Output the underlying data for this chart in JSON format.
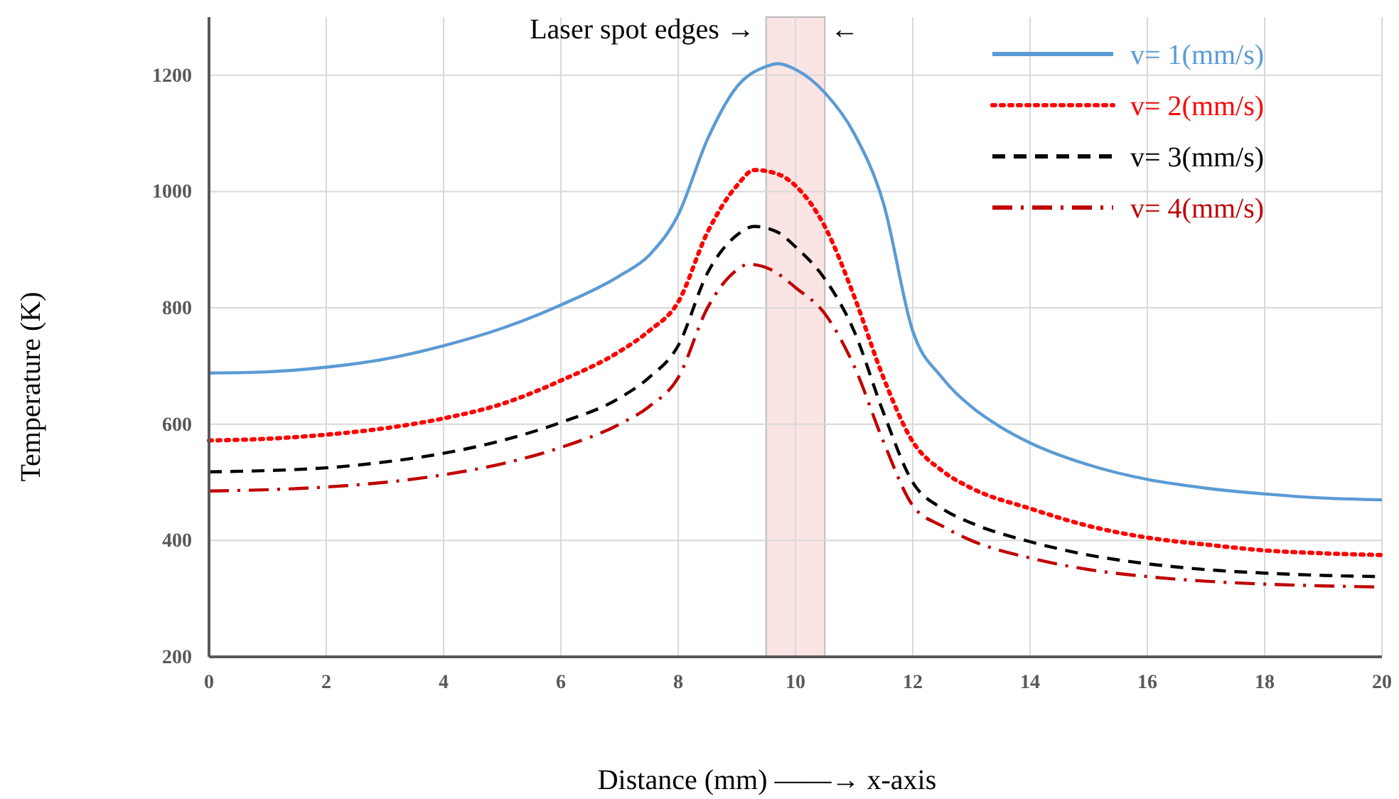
{
  "chart_data": {
    "type": "line",
    "xlabel": "Distance (mm) ——→ x-axis",
    "ylabel": "Temperature (K)",
    "xlim": [
      0,
      20
    ],
    "xticks": [
      0,
      2,
      4,
      6,
      8,
      10,
      12,
      14,
      16,
      18,
      20
    ],
    "ylim": [
      200,
      1300
    ],
    "yticks": [
      200,
      400,
      600,
      800,
      1000,
      1200
    ],
    "grid": true,
    "legend": "top right",
    "marker": "none",
    "bands": [
      {
        "axis": "x",
        "from": 9.5,
        "to": 10.5,
        "color": "#fbe4e4"
      }
    ],
    "annotations": [
      "Laser spot edges →",
      "←"
    ],
    "series": [
      {
        "name": "v= 1(mm/s)",
        "color": "#5b9bd5",
        "line_style": "solid",
        "x": [
          0,
          1,
          2,
          3,
          4,
          5,
          6,
          7,
          7.5,
          8,
          8.5,
          9,
          9.5,
          9.7,
          10,
          10.5,
          11,
          11.5,
          12,
          12.5,
          13,
          13.5,
          14,
          15,
          16,
          17,
          18,
          19,
          20
        ],
        "values": [
          688,
          690,
          698,
          712,
          735,
          765,
          805,
          855,
          890,
          960,
          1090,
          1180,
          1215,
          1220,
          1210,
          1170,
          1100,
          980,
          760,
          680,
          630,
          595,
          568,
          530,
          505,
          490,
          480,
          473,
          470
        ]
      },
      {
        "name": "v= 2(mm/s)",
        "color": "#ff0000",
        "line_style": "dotted",
        "x": [
          0,
          1,
          2,
          3,
          4,
          5,
          6,
          7,
          7.5,
          8,
          8.5,
          9,
          9.3,
          9.7,
          10,
          10.5,
          11,
          11.5,
          12,
          12.5,
          13,
          14,
          15,
          16,
          17,
          18,
          19,
          20
        ],
        "values": [
          572,
          575,
          582,
          593,
          610,
          635,
          675,
          725,
          760,
          810,
          930,
          1010,
          1037,
          1030,
          1010,
          940,
          820,
          680,
          570,
          520,
          490,
          455,
          425,
          405,
          393,
          383,
          378,
          375
        ]
      },
      {
        "name": "v= 3(mm/s)",
        "color": "#000000",
        "line_style": "dashed",
        "x": [
          0,
          2,
          3,
          4,
          5,
          6,
          7,
          7.5,
          8,
          8.5,
          9,
          9.3,
          9.7,
          10,
          10.5,
          11,
          11.5,
          12,
          12.5,
          13,
          14,
          15,
          16,
          17,
          18,
          19,
          20
        ],
        "values": [
          518,
          525,
          535,
          550,
          572,
          603,
          645,
          680,
          735,
          860,
          925,
          940,
          930,
          905,
          850,
          760,
          620,
          500,
          455,
          430,
          398,
          375,
          360,
          350,
          344,
          340,
          338
        ]
      },
      {
        "name": "v= 4(mm/s)",
        "color": "#c00000",
        "line_style": "dashdot",
        "x": [
          0,
          2,
          3,
          4,
          5,
          6,
          7,
          7.5,
          8,
          8.5,
          9,
          9.2,
          9.6,
          10,
          10.5,
          11,
          11.5,
          12,
          12.5,
          13,
          14,
          15,
          16,
          17,
          18,
          19,
          20
        ],
        "values": [
          485,
          492,
          500,
          513,
          532,
          560,
          600,
          630,
          680,
          800,
          865,
          875,
          865,
          835,
          790,
          700,
          570,
          460,
          425,
          400,
          370,
          350,
          338,
          330,
          325,
          322,
          320
        ]
      }
    ]
  }
}
